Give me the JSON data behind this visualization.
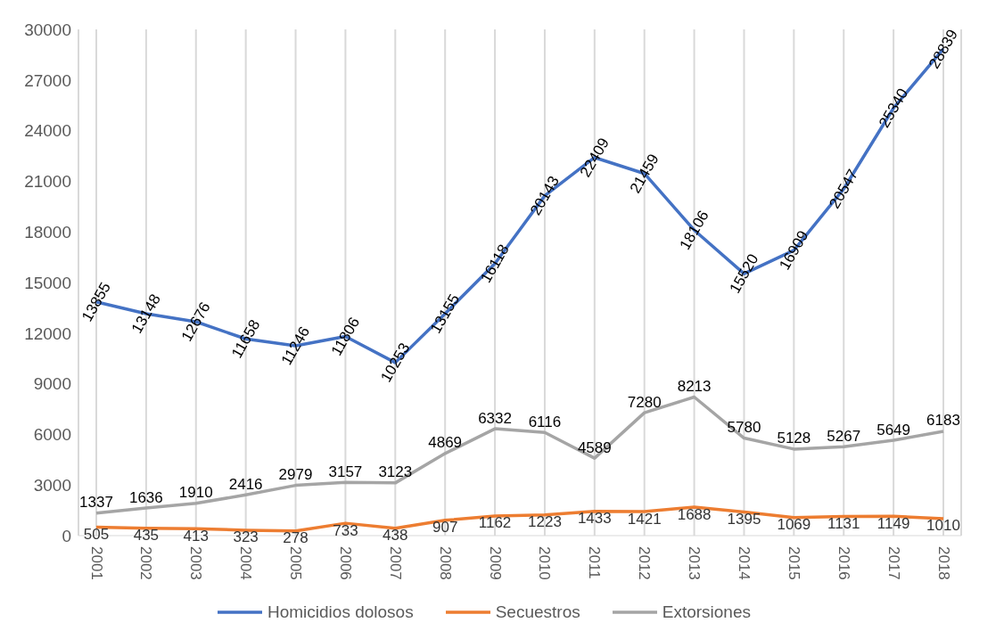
{
  "chart_data": {
    "type": "line",
    "categories": [
      "2001",
      "2002",
      "2003",
      "2004",
      "2005",
      "2006",
      "2007",
      "2008",
      "2009",
      "2010",
      "2011",
      "2012",
      "2013",
      "2014",
      "2015",
      "2016",
      "2017",
      "2018"
    ],
    "series": [
      {
        "name": "Homicidios dolosos",
        "color": "#4472c4",
        "values": [
          13855,
          13148,
          12676,
          11658,
          11246,
          11806,
          10253,
          13155,
          16118,
          20143,
          22409,
          21459,
          18106,
          15520,
          16909,
          20547,
          25340,
          28839
        ]
      },
      {
        "name": "Secuestros",
        "color": "#ed7d31",
        "values": [
          505,
          435,
          413,
          323,
          278,
          733,
          438,
          907,
          1162,
          1223,
          1433,
          1421,
          1688,
          1395,
          1069,
          1131,
          1149,
          1010
        ]
      },
      {
        "name": "Extorsiones",
        "color": "#a5a5a5",
        "values": [
          1337,
          1636,
          1910,
          2416,
          2979,
          3157,
          3123,
          4869,
          6332,
          6116,
          4589,
          7280,
          8213,
          5780,
          5128,
          5267,
          5649,
          6183
        ]
      }
    ],
    "ylim": [
      0,
      30000
    ],
    "yticks": [
      0,
      3000,
      6000,
      9000,
      12000,
      15000,
      18000,
      21000,
      24000,
      27000,
      30000
    ],
    "grid": "x",
    "legend": "bottom",
    "marker": "none",
    "line_style": "solid",
    "data_labels": true
  }
}
